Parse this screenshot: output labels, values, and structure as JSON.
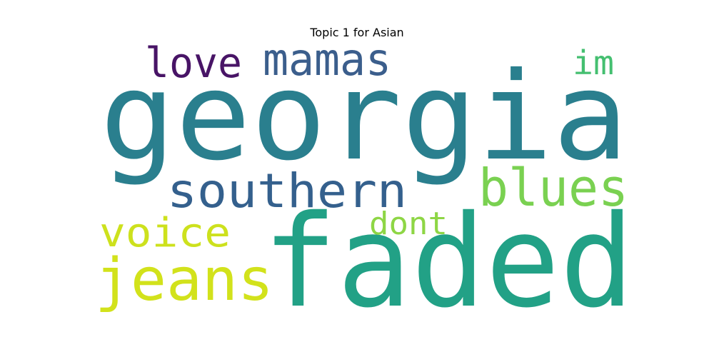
{
  "title": "Topic 1 for Asian",
  "words": [
    {
      "text": "georgia",
      "color": "#2a7f8e"
    },
    {
      "text": "faded",
      "color": "#22a186"
    },
    {
      "text": "southern",
      "color": "#34608d"
    },
    {
      "text": "blues",
      "color": "#7ad151"
    },
    {
      "text": "mamas",
      "color": "#3b5e8c"
    },
    {
      "text": "love",
      "color": "#481466"
    },
    {
      "text": "im",
      "color": "#44bf70"
    },
    {
      "text": "voice",
      "color": "#cde11d"
    },
    {
      "text": "jeans",
      "color": "#d2e21b"
    },
    {
      "text": "dont",
      "color": "#8ed645"
    }
  ]
}
